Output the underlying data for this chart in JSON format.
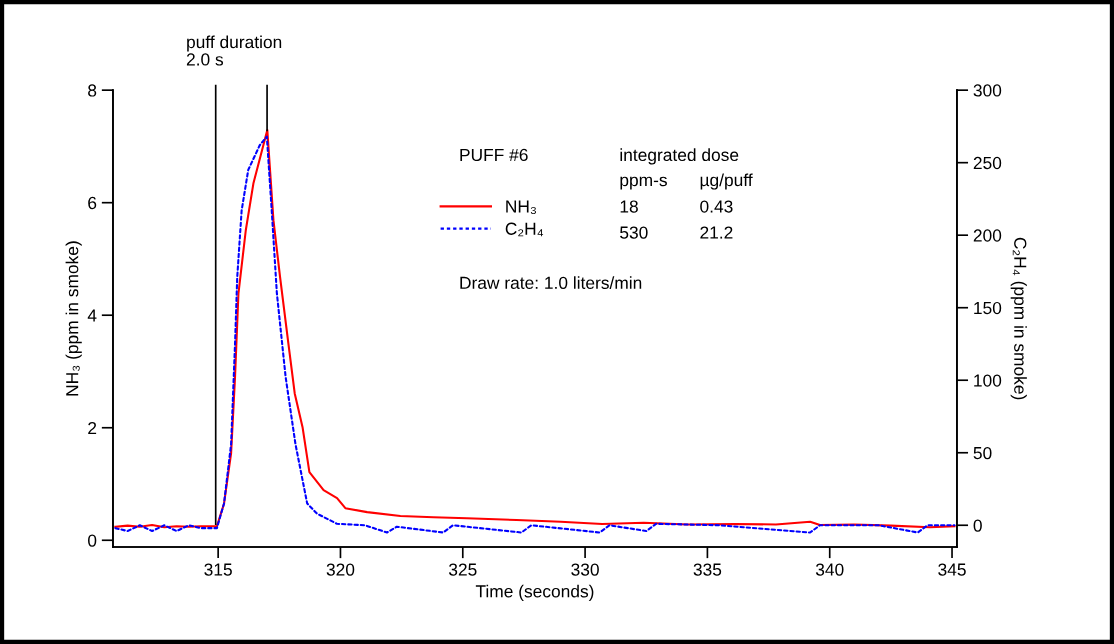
{
  "chart_data": {
    "type": "line",
    "xlabel": "Time (seconds)",
    "ylabel": "NH₃ (ppm in smoke)",
    "y2label": "C₂H₄ (ppm in smoke)",
    "xlim": [
      310.7,
      345.2
    ],
    "xticks": [
      315,
      320,
      325,
      330,
      335,
      340,
      345
    ],
    "ylim": [
      -0.12,
      8
    ],
    "yticks": [
      0,
      2,
      4,
      6,
      8
    ],
    "y2lim": [
      -15,
      300
    ],
    "y2ticks": [
      0,
      50,
      100,
      150,
      200,
      250,
      300
    ],
    "grid": false,
    "legend": "top",
    "marker": "none",
    "series": [
      {
        "name": "NH₃",
        "color": "#ff0000",
        "line_style": "solid",
        "x": [
          310.8,
          311.3,
          311.8,
          312.3,
          312.8,
          313.3,
          313.8,
          314.3,
          314.7,
          314.95,
          315.24,
          315.53,
          315.69,
          315.83,
          316.13,
          316.44,
          317.01,
          317.26,
          317.53,
          317.87,
          318.13,
          318.45,
          318.73,
          319.31,
          319.86,
          320.2,
          321.09,
          322.45,
          323.8,
          325.17,
          327.2,
          329.0,
          330.7,
          332.4,
          334.2,
          336.1,
          337.8,
          339.2,
          339.6,
          341.0,
          342.5,
          344.1,
          345.1
        ],
        "values": [
          0.24,
          0.26,
          0.24,
          0.27,
          0.23,
          0.25,
          0.24,
          0.25,
          0.25,
          0.25,
          0.65,
          1.55,
          2.9,
          4.39,
          5.51,
          6.34,
          7.29,
          5.69,
          4.68,
          3.5,
          2.61,
          2.01,
          1.21,
          0.89,
          0.75,
          0.57,
          0.5,
          0.43,
          0.41,
          0.39,
          0.36,
          0.33,
          0.29,
          0.31,
          0.28,
          0.29,
          0.28,
          0.33,
          0.27,
          0.28,
          0.26,
          0.23,
          0.25
        ]
      },
      {
        "name": "C₂H₄",
        "color": "#0000ff",
        "line_style": "dashed",
        "axis": "y2",
        "x": [
          310.8,
          311.3,
          311.8,
          312.3,
          312.8,
          313.3,
          313.8,
          314.3,
          314.95,
          315.24,
          315.53,
          315.69,
          315.78,
          315.96,
          316.23,
          316.7,
          316.99,
          317.19,
          317.4,
          317.76,
          318.16,
          318.64,
          319.04,
          319.86,
          321.0,
          321.9,
          322.3,
          324.2,
          324.6,
          327.4,
          327.8,
          330.6,
          331.0,
          332.5,
          332.9,
          335.5,
          339.2,
          339.6,
          342.0,
          343.6,
          344.0,
          345.1
        ],
        "values": [
          -2,
          -4,
          0,
          -4,
          0,
          -4,
          0,
          -2,
          -2,
          15,
          56,
          125,
          171,
          217,
          245,
          262,
          268,
          217,
          160,
          102,
          56,
          15,
          8,
          1,
          0,
          -5,
          -1,
          -5,
          0,
          -5,
          0,
          -5,
          0,
          -4,
          1,
          0,
          -5,
          0,
          0,
          -5,
          0,
          0
        ]
      }
    ],
    "ref_lines": [
      {
        "axis": "x",
        "value": 314.9,
        "color": "#000000"
      },
      {
        "axis": "x",
        "value": 317.0,
        "color": "#000000"
      }
    ],
    "annotations": [
      "puff duration\n2.0 s",
      "PUFF #6",
      "integrated dose",
      "ppm-s",
      "µg/puff",
      "18",
      "0.43",
      "530",
      "21.2",
      "Draw rate: 1.0 liters/min"
    ]
  }
}
